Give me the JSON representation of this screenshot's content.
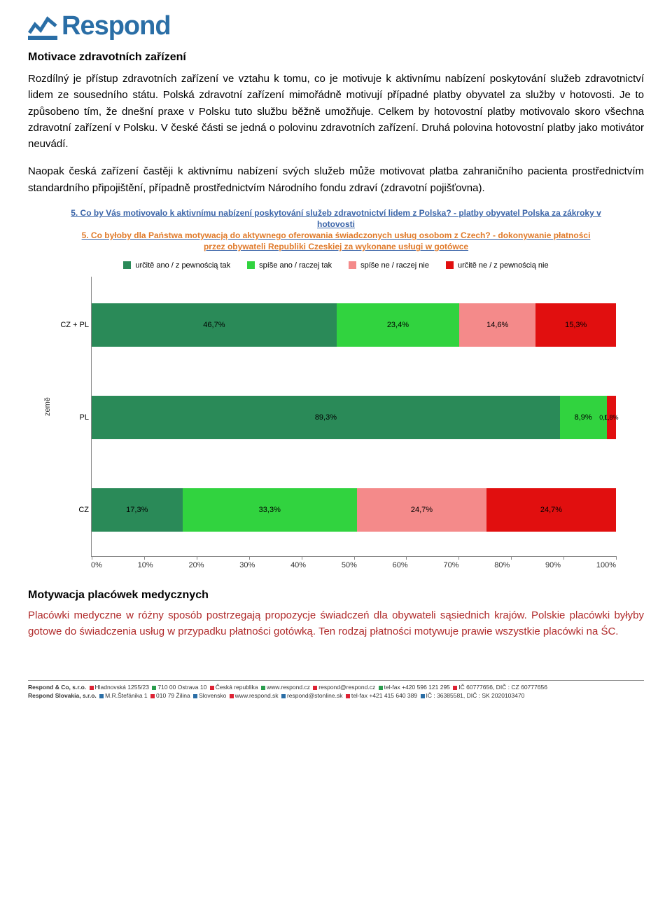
{
  "logo": {
    "text": "Respond"
  },
  "section_cz": {
    "title": "Motivace zdravotních zařízení",
    "p1": "Rozdílný je přístup zdravotních zařízení ve vztahu k tomu, co je motivuje k aktivnímu nabízení poskytování služeb zdravotnictví lidem ze sousedního státu. Polská zdravotní zařízení mimořádně motivují případné platby obyvatel za služby v hotovosti. Je to způsobeno tím, že dnešní praxe v Polsku tuto službu běžně umožňuje. Celkem by hotovostní platby motivovalo skoro všechna zdravotní zařízení v Polsku. V české části se jedná o polovinu zdravotních zařízení. Druhá polovina hotovostní platby jako motivátor neuvádí.",
    "p2": "Naopak česká zařízení častěji k aktivnímu nabízení svých služeb může motivovat platba zahraničního pacienta prostřednictvím standardního připojištění, případně prostřednictvím Národního fondu zdraví (zdravotní pojišťovna)."
  },
  "chart": {
    "type": "stacked-bar-horizontal",
    "title_line1": "5. Co by Vás motivovalo k aktivnímu nabízení poskytování služeb zdravotnictví lidem z Polska? - platby obyvatel Polska za zákroky v hotovosti",
    "title_line2": "5. Co byłoby dla Państwa motywacją do aktywnego oferowania świadczonych usług osobom z Czech? - dokonywanie płatności przez obywateli Republiki Czeskiej za wykonane usługi w gotówce",
    "ylabel": "země",
    "legend": [
      {
        "label": "určitě ano / z pewnością tak",
        "color": "#2a8a58"
      },
      {
        "label": "spíše ano / raczej tak",
        "color": "#31d33f"
      },
      {
        "label": "spíše ne / raczej nie",
        "color": "#f48a8a"
      },
      {
        "label": "určitě ne / z pewnością nie",
        "color": "#e10f0f"
      }
    ],
    "categories": [
      {
        "name": "CZ + PL",
        "values": [
          46.7,
          23.4,
          14.6,
          15.3
        ],
        "labels": [
          "46,7%",
          "23,4%",
          "14,6%",
          "15,3%"
        ]
      },
      {
        "name": "PL",
        "values": [
          89.3,
          8.9,
          0.0,
          1.8
        ],
        "labels": [
          "89,3%",
          "8,9%",
          "0,0%",
          "1,8%"
        ]
      },
      {
        "name": "CZ",
        "values": [
          17.3,
          33.3,
          24.7,
          24.7
        ],
        "labels": [
          "17,3%",
          "33,3%",
          "24,7%",
          "24,7%"
        ]
      }
    ],
    "xticks": [
      "0%",
      "10%",
      "20%",
      "30%",
      "40%",
      "50%",
      "60%",
      "70%",
      "80%",
      "90%",
      "100%"
    ],
    "background_color": "#ffffff",
    "label_fontsize": 11,
    "title_color": "#3a64a8",
    "title_color_orange": "#e07a2a"
  },
  "section_pl": {
    "title": "Motywacja placówek medycznych",
    "body": "Placówki medyczne w różny sposób postrzegają propozycje świadczeń dla obywateli sąsiednich krajów. Polskie placówki byłyby gotowe do świadczenia usług w przypadku płatności gotówką. Ten rodzaj płatności motywuje prawie wszystkie placówki na ŚC."
  },
  "footer": {
    "line1_a": "Respond & Co, s.r.o.",
    "line1_b": "Hladnovská 1255/23",
    "line1_c": "710 00  Ostrava 10",
    "line1_d": "Česká republika",
    "line1_e": "www.respond.cz",
    "line1_f": "respond@respond.cz",
    "line1_g": "tel-fax +420 596 121 295",
    "line1_h": "IČ 60777656, DIČ : CZ 60777656",
    "line2_a": "Respond Slovakia, s.r.o.",
    "line2_b": "M.R.Štefánika 1",
    "line2_c": "010 79  Žilina",
    "line2_d": "Slovensko",
    "line2_e": "www.respond.sk",
    "line2_f": "respond@stonline.sk",
    "line2_g": "tel-fax +421 415 640 389",
    "line2_h": "IČ : 36385581, DIČ : SK 2020103470"
  }
}
